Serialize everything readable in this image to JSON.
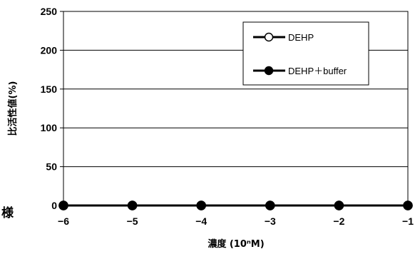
{
  "chart_data": {
    "type": "line",
    "xlabel": "濃度 (10ⁿM)",
    "ylabel": "比活性値(%)",
    "x": [
      -6,
      -5,
      -4,
      -3,
      -2,
      -1
    ],
    "xlim": [
      -6,
      -1
    ],
    "ylim": [
      0,
      250
    ],
    "yticks": [
      0,
      50,
      100,
      150,
      200,
      250
    ],
    "xticks": [
      -6,
      -5,
      -4,
      -3,
      -2,
      -1
    ],
    "xtick_labels": [
      "−6",
      "−5",
      "−4",
      "−3",
      "−2",
      "−1"
    ],
    "grid": true,
    "legend_position": "top-right",
    "series": [
      {
        "name": "DEHP",
        "values": [
          0,
          0,
          0,
          0,
          0,
          0
        ],
        "marker": "open-circle",
        "color": "#000000"
      },
      {
        "name": "DEHP＋buffer",
        "values": [
          0,
          0,
          0,
          0,
          0,
          0
        ],
        "marker": "filled-circle",
        "color": "#000000"
      }
    ]
  },
  "edge_text": "様"
}
